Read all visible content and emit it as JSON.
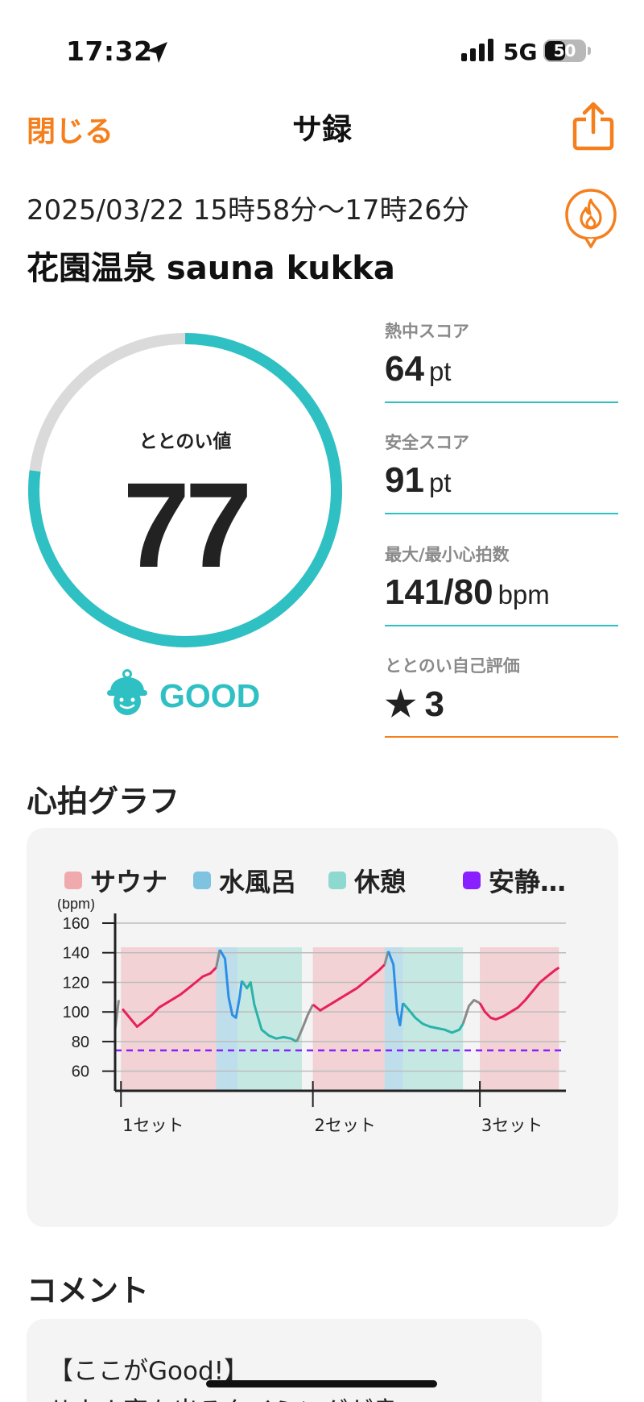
{
  "status_bar": {
    "time": "17:32",
    "network": "5G",
    "battery": "50",
    "battery_level": 0.5
  },
  "header": {
    "close_label": "閉じる",
    "title": "サ録"
  },
  "session": {
    "datetime": "2025/03/22 15時58分〜17時26分",
    "place": "花園温泉 sauna kukka"
  },
  "score": {
    "label": "ととのい値",
    "value": "77",
    "fraction": 0.77,
    "rating": "GOOD"
  },
  "metrics": {
    "heat": {
      "label": "熱中スコア",
      "value": "64",
      "unit": "pt"
    },
    "safety": {
      "label": "安全スコア",
      "value": "91",
      "unit": "pt"
    },
    "heart_rate": {
      "label": "最大/最小心拍数",
      "value": "141/80",
      "unit": "bpm"
    },
    "self_eval": {
      "label": "ととのい自己評価",
      "star": "★",
      "value": "3"
    }
  },
  "graph": {
    "section_title": "心拍グラフ",
    "legend": [
      {
        "label": "サウナ",
        "color": "#f0a9ad"
      },
      {
        "label": "水風呂",
        "color": "#7ec3e0"
      },
      {
        "label": "休憩",
        "color": "#8ed9cf"
      },
      {
        "label": "安静…",
        "color": "#8a1fff"
      }
    ]
  },
  "chart_data": {
    "type": "line",
    "ylabel": "(bpm)",
    "ylim": [
      50,
      160
    ],
    "yticks": [
      160,
      140,
      120,
      100,
      80,
      60
    ],
    "categories": [
      "1セット",
      "2セット",
      "3セット"
    ],
    "resting_line": 74,
    "colors": {
      "sauna": "#e8205a",
      "cold": "#2b8fe8",
      "rest": "#2ab3a8",
      "transition": "#8a8a8a"
    },
    "segments": [
      {
        "phase": "transition",
        "points": [
          [
            0,
            88
          ],
          [
            0.5,
            108
          ]
        ]
      },
      {
        "phase": "sauna",
        "points": [
          [
            1,
            102
          ],
          [
            2,
            96
          ],
          [
            3,
            90
          ],
          [
            4,
            94
          ],
          [
            5,
            98
          ],
          [
            6,
            103
          ],
          [
            7,
            106
          ],
          [
            8,
            109
          ],
          [
            9,
            112
          ],
          [
            10,
            116
          ],
          [
            11,
            120
          ],
          [
            12,
            124
          ],
          [
            13,
            126
          ],
          [
            13.8,
            130
          ]
        ]
      },
      {
        "phase": "transition",
        "points": [
          [
            13.8,
            130
          ],
          [
            14.3,
            142
          ]
        ]
      },
      {
        "phase": "cold",
        "points": [
          [
            14.3,
            142
          ],
          [
            15,
            136
          ],
          [
            15.5,
            110
          ],
          [
            16,
            98
          ],
          [
            16.5,
            96
          ],
          [
            17,
            110
          ],
          [
            17.3,
            121
          ]
        ]
      },
      {
        "phase": "rest",
        "points": [
          [
            17.3,
            121
          ],
          [
            18,
            116
          ],
          [
            18.5,
            120
          ],
          [
            19,
            105
          ],
          [
            20,
            88
          ],
          [
            21,
            84
          ],
          [
            22,
            82
          ],
          [
            23,
            83
          ],
          [
            24,
            82
          ],
          [
            24.8,
            80
          ]
        ]
      },
      {
        "phase": "transition",
        "points": [
          [
            24.8,
            80
          ],
          [
            25.5,
            88
          ],
          [
            26.3,
            98
          ],
          [
            27,
            105
          ]
        ]
      },
      {
        "phase": "sauna",
        "points": [
          [
            27,
            105
          ],
          [
            28,
            101
          ],
          [
            29,
            104
          ],
          [
            30,
            107
          ],
          [
            31,
            110
          ],
          [
            32,
            113
          ],
          [
            33,
            116
          ],
          [
            34,
            120
          ],
          [
            35,
            124
          ],
          [
            36,
            128
          ],
          [
            36.8,
            132
          ]
        ]
      },
      {
        "phase": "transition",
        "points": [
          [
            36.8,
            132
          ],
          [
            37.3,
            141
          ]
        ]
      },
      {
        "phase": "cold",
        "points": [
          [
            37.3,
            141
          ],
          [
            38,
            132
          ],
          [
            38.5,
            100
          ],
          [
            38.9,
            91
          ],
          [
            39.3,
            106
          ]
        ]
      },
      {
        "phase": "rest",
        "points": [
          [
            39.3,
            106
          ],
          [
            40,
            102
          ],
          [
            41,
            96
          ],
          [
            42,
            92
          ],
          [
            43,
            90
          ],
          [
            44,
            89
          ],
          [
            45,
            88
          ],
          [
            46,
            86
          ],
          [
            47,
            88
          ],
          [
            47.5,
            92
          ]
        ]
      },
      {
        "phase": "transition",
        "points": [
          [
            47.5,
            92
          ],
          [
            48.3,
            104
          ],
          [
            49,
            108
          ],
          [
            49.8,
            106
          ]
        ]
      },
      {
        "phase": "sauna",
        "points": [
          [
            49.8,
            106
          ],
          [
            50.5,
            100
          ],
          [
            51.3,
            96
          ],
          [
            52,
            95
          ],
          [
            53,
            97
          ],
          [
            54,
            100
          ],
          [
            55,
            103
          ],
          [
            56,
            108
          ],
          [
            57,
            114
          ],
          [
            58,
            120
          ],
          [
            59,
            124
          ],
          [
            60,
            128
          ],
          [
            60.6,
            130
          ]
        ]
      }
    ],
    "shading": [
      {
        "phase": "sauna",
        "range": [
          0.8,
          13.8
        ]
      },
      {
        "phase": "cold",
        "range": [
          13.8,
          16.7
        ]
      },
      {
        "phase": "rest",
        "range": [
          16.7,
          25.5
        ]
      },
      {
        "phase": "sauna",
        "range": [
          27,
          36.8
        ]
      },
      {
        "phase": "cold",
        "range": [
          36.8,
          39.3
        ]
      },
      {
        "phase": "rest",
        "range": [
          39.3,
          47.5
        ]
      },
      {
        "phase": "sauna",
        "range": [
          49.8,
          60.6
        ]
      }
    ],
    "set_positions": [
      0.8,
      27,
      49.8
    ]
  },
  "comment": {
    "section_title": "コメント",
    "heading": "【ここがGood!】",
    "body": "サウナ室を出るタイミングが良い"
  }
}
